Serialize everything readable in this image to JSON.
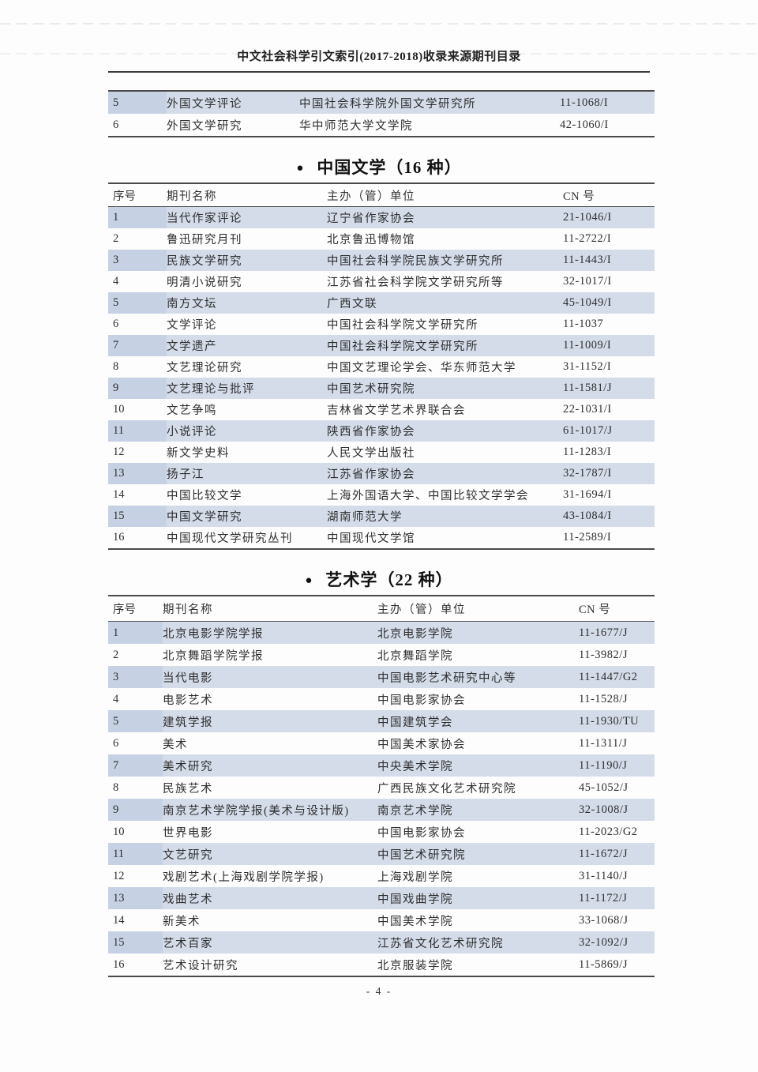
{
  "page": {
    "header_title": "中文社会科学引文索引(2017-2018)收录来源期刊目录",
    "footer_page_number": "- 4 -"
  },
  "columns": {
    "index": "序号",
    "journal": "期刊名称",
    "organizer": "主办（管）单位",
    "cn": "CN 号"
  },
  "tables": [
    {
      "id": "foreign-literature-continuation",
      "show_header": false,
      "rows": [
        {
          "index": "5",
          "journal": "外国文学评论",
          "organizer": "中国社会科学院外国文学研究所",
          "cn": "11-1068/I"
        },
        {
          "index": "6",
          "journal": "外国文学研究",
          "organizer": "华中师范大学文学院",
          "cn": "42-1060/I"
        }
      ]
    },
    {
      "id": "chinese-literature",
      "bullet": "●",
      "section_title": "中国文学（16 种）",
      "show_header": true,
      "rows": [
        {
          "index": "1",
          "journal": "当代作家评论",
          "organizer": "辽宁省作家协会",
          "cn": "21-1046/I"
        },
        {
          "index": "2",
          "journal": "鲁迅研究月刊",
          "organizer": "北京鲁迅博物馆",
          "cn": "11-2722/I"
        },
        {
          "index": "3",
          "journal": "民族文学研究",
          "organizer": "中国社会科学院民族文学研究所",
          "cn": "11-1443/I"
        },
        {
          "index": "4",
          "journal": "明清小说研究",
          "organizer": "江苏省社会科学院文学研究所等",
          "cn": "32-1017/I"
        },
        {
          "index": "5",
          "journal": "南方文坛",
          "organizer": "广西文联",
          "cn": "45-1049/I"
        },
        {
          "index": "6",
          "journal": "文学评论",
          "organizer": "中国社会科学院文学研究所",
          "cn": "11-1037"
        },
        {
          "index": "7",
          "journal": "文学遗产",
          "organizer": "中国社会科学院文学研究所",
          "cn": "11-1009/I"
        },
        {
          "index": "8",
          "journal": "文艺理论研究",
          "organizer": "中国文艺理论学会、华东师范大学",
          "cn": "31-1152/I"
        },
        {
          "index": "9",
          "journal": "文艺理论与批评",
          "organizer": "中国艺术研究院",
          "cn": "11-1581/J"
        },
        {
          "index": "10",
          "journal": "文艺争鸣",
          "organizer": "吉林省文学艺术界联合会",
          "cn": "22-1031/I"
        },
        {
          "index": "11",
          "journal": "小说评论",
          "organizer": "陕西省作家协会",
          "cn": "61-1017/J"
        },
        {
          "index": "12",
          "journal": "新文学史料",
          "organizer": "人民文学出版社",
          "cn": "11-1283/I"
        },
        {
          "index": "13",
          "journal": "扬子江",
          "organizer": "江苏省作家协会",
          "cn": "32-1787/I"
        },
        {
          "index": "14",
          "journal": "中国比较文学",
          "organizer": "上海外国语大学、中国比较文学学会",
          "cn": "31-1694/I"
        },
        {
          "index": "15",
          "journal": "中国文学研究",
          "organizer": "湖南师范大学",
          "cn": "43-1084/I"
        },
        {
          "index": "16",
          "journal": "中国现代文学研究丛刊",
          "organizer": "中国现代文学馆",
          "cn": "11-2589/I"
        }
      ]
    },
    {
      "id": "art-studies",
      "bullet": "●",
      "section_title": "艺术学（22 种）",
      "show_header": true,
      "rows": [
        {
          "index": "1",
          "journal": "北京电影学院学报",
          "organizer": "北京电影学院",
          "cn": "11-1677/J"
        },
        {
          "index": "2",
          "journal": "北京舞蹈学院学报",
          "organizer": "北京舞蹈学院",
          "cn": "11-3982/J"
        },
        {
          "index": "3",
          "journal": "当代电影",
          "organizer": "中国电影艺术研究中心等",
          "cn": "11-1447/G2"
        },
        {
          "index": "4",
          "journal": "电影艺术",
          "organizer": "中国电影家协会",
          "cn": "11-1528/J"
        },
        {
          "index": "5",
          "journal": "建筑学报",
          "organizer": "中国建筑学会",
          "cn": "11-1930/TU"
        },
        {
          "index": "6",
          "journal": "美术",
          "organizer": "中国美术家协会",
          "cn": "11-1311/J"
        },
        {
          "index": "7",
          "journal": "美术研究",
          "organizer": "中央美术学院",
          "cn": "11-1190/J"
        },
        {
          "index": "8",
          "journal": "民族艺术",
          "organizer": "广西民族文化艺术研究院",
          "cn": "45-1052/J"
        },
        {
          "index": "9",
          "journal": "南京艺术学院学报(美术与设计版)",
          "organizer": "南京艺术学院",
          "cn": "32-1008/J"
        },
        {
          "index": "10",
          "journal": "世界电影",
          "organizer": "中国电影家协会",
          "cn": "11-2023/G2"
        },
        {
          "index": "11",
          "journal": "文艺研究",
          "organizer": "中国艺术研究院",
          "cn": "11-1672/J"
        },
        {
          "index": "12",
          "journal": "戏剧艺术(上海戏剧学院学报)",
          "organizer": "上海戏剧学院",
          "cn": "31-1140/J"
        },
        {
          "index": "13",
          "journal": "戏曲艺术",
          "organizer": "中国戏曲学院",
          "cn": "11-1172/J"
        },
        {
          "index": "14",
          "journal": "新美术",
          "organizer": "中国美术学院",
          "cn": "33-1068/J"
        },
        {
          "index": "15",
          "journal": "艺术百家",
          "organizer": "江苏省文化艺术研究院",
          "cn": "32-1092/J"
        },
        {
          "index": "16",
          "journal": "艺术设计研究",
          "organizer": "北京服装学院",
          "cn": "11-5869/J"
        }
      ]
    }
  ]
}
